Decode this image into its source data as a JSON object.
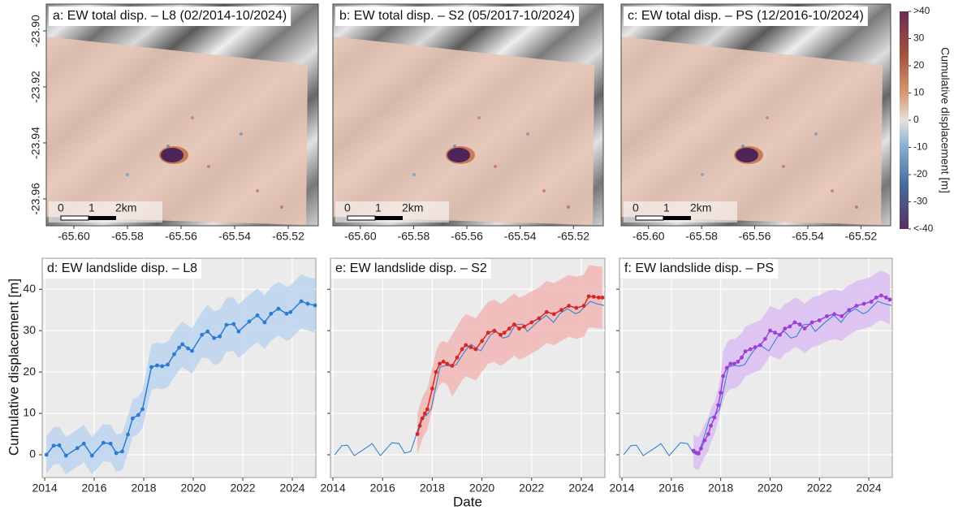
{
  "chart_data": [
    {
      "type": "map",
      "title": "a: EW total disp. – L8 (02/2014-10/2024)",
      "xlim": [
        -65.6103,
        -65.5088
      ],
      "ylim": [
        -23.9696,
        -23.8904
      ],
      "xticks": [
        {
          "value": -65.6,
          "label": "-65.60"
        },
        -65.58,
        -65.56,
        -65.54,
        -65.52
      ],
      "yticks": [
        {
          "value": -23.9,
          "label": "-23.90"
        },
        -23.92,
        -23.94,
        -23.96
      ],
      "scalebar_labels": [
        "0",
        "1",
        "2km"
      ]
    },
    {
      "type": "map",
      "title": "b: EW total disp. – S2 (05/2017-10/2024)",
      "xlim": [
        -65.6103,
        -65.5088
      ],
      "ylim": [
        -23.9696,
        -23.8904
      ],
      "xticks": [
        {
          "value": -65.6,
          "label": "-65.60"
        },
        -65.58,
        -65.56,
        -65.54,
        -65.52
      ],
      "scalebar_labels": [
        "0",
        "1",
        "2km"
      ]
    },
    {
      "type": "map",
      "title": "c: EW total disp. – PS (12/2016-10/2024)",
      "xlim": [
        -65.6103,
        -65.5088
      ],
      "ylim": [
        -23.9696,
        -23.8904
      ],
      "xticks": [
        {
          "value": -65.6,
          "label": "-65.60"
        },
        -65.58,
        -65.56,
        -65.54,
        -65.52
      ],
      "scalebar_labels": [
        "0",
        "1",
        "2km"
      ]
    },
    {
      "type": "line",
      "title": "d: EW landslide disp. – L8",
      "xlim": [
        2013.9,
        2024.95
      ],
      "ylim": [
        -5.5,
        47.5
      ],
      "xticks": [
        2014,
        2016,
        2018,
        2020,
        2022,
        2024
      ],
      "yticks": [
        0,
        10,
        20,
        30,
        40
      ],
      "ytick_labels": true,
      "grid": true,
      "series": [
        {
          "color": "#2b7bd0",
          "band_color": "#bcd5ef",
          "markers": true,
          "x": [
            2014.07,
            2014.36,
            2014.59,
            2014.86,
            2015.32,
            2015.58,
            2015.91,
            2016.37,
            2016.66,
            2016.89,
            2017.13,
            2017.36,
            2017.55,
            2017.78,
            2017.95,
            2018.31,
            2018.54,
            2018.74,
            2018.97,
            2019.23,
            2019.43,
            2019.56,
            2019.79,
            2019.95,
            2020.35,
            2020.58,
            2020.84,
            2021.07,
            2021.34,
            2021.63,
            2021.83,
            2022.26,
            2022.59,
            2022.88,
            2023.14,
            2023.44,
            2023.77,
            2023.93,
            2024.36,
            2024.62,
            2024.92
          ],
          "values": [
            0,
            2.2,
            2.3,
            -0.2,
            1.6,
            2.7,
            -0.2,
            2.9,
            2.7,
            0.4,
            0.8,
            4.9,
            8.8,
            9.6,
            11,
            21.2,
            21.6,
            21.4,
            21.8,
            24.3,
            25.9,
            26.7,
            25.7,
            25.1,
            29,
            29.8,
            28.2,
            28.6,
            31.4,
            31.6,
            29.8,
            32.2,
            33.7,
            32,
            34.1,
            35.3,
            34.1,
            34.5,
            37.1,
            36.5,
            36.1
          ],
          "errors": [
            4.5,
            4.5,
            4.5,
            4.5,
            4.5,
            4.5,
            4.5,
            4.5,
            4.5,
            4.5,
            4.5,
            4.5,
            4.5,
            4.5,
            4.5,
            5.5,
            5.5,
            5.5,
            5.5,
            5.5,
            5.5,
            5.5,
            5.5,
            5.5,
            5.5,
            6.5,
            6.5,
            6.5,
            6.5,
            6.5,
            6.5,
            6.5,
            6.5,
            6.5,
            6.5,
            6.5,
            6.5,
            6.5,
            6.5,
            6.5,
            6.5
          ]
        }
      ]
    },
    {
      "type": "line",
      "title": "e: EW landslide disp. – S2",
      "xlim": [
        2013.9,
        2024.95
      ],
      "ylim": [
        -5.5,
        47.5
      ],
      "xticks": [
        2014,
        2016,
        2018,
        2020,
        2022,
        2024
      ],
      "yticks": [
        0,
        10,
        20,
        30,
        40
      ],
      "ytick_labels": false,
      "grid": true,
      "series": [
        {
          "color": "#d62728",
          "band_color": "#f1b7b5",
          "markers": true,
          "x": [
            2017.4,
            2017.5,
            2017.6,
            2017.7,
            2017.8,
            2018.0,
            2018.15,
            2018.3,
            2018.45,
            2018.6,
            2018.8,
            2019.0,
            2019.2,
            2019.35,
            2019.55,
            2019.75,
            2020.0,
            2020.25,
            2020.5,
            2020.75,
            2020.9,
            2021.1,
            2021.3,
            2021.5,
            2021.7,
            2022.0,
            2022.3,
            2022.6,
            2022.9,
            2023.2,
            2023.5,
            2023.8,
            2024.1,
            2024.3,
            2024.5,
            2024.7,
            2024.85
          ],
          "values": [
            5,
            7,
            8.8,
            10,
            11,
            16,
            20,
            22,
            22.5,
            22,
            21.5,
            23.5,
            25.5,
            26.5,
            26,
            25.5,
            27.5,
            29.5,
            30,
            29,
            29.5,
            30.5,
            31.5,
            30.5,
            31,
            32,
            33,
            34.5,
            34,
            35,
            36,
            35.5,
            36,
            38.3,
            38.2,
            38,
            38
          ],
          "errors": [
            5,
            5,
            5,
            5,
            5,
            5,
            5,
            5,
            5,
            5,
            7.5,
            7.5,
            7.5,
            7.5,
            7.5,
            7.5,
            7.5,
            7.5,
            7.5,
            7.5,
            7.5,
            7.5,
            7.5,
            7.5,
            7.5,
            7.5,
            7.5,
            7.5,
            7.5,
            7.5,
            7.5,
            7.5,
            7.5,
            7.5,
            7.5,
            7.5,
            7.5
          ]
        },
        {
          "color": "#2b7bd0",
          "markers": false,
          "x": [
            2014.07,
            2014.36,
            2014.59,
            2014.86,
            2015.32,
            2015.58,
            2015.91,
            2016.37,
            2016.66,
            2016.89,
            2017.13,
            2017.36,
            2017.55,
            2017.78,
            2017.95,
            2018.31,
            2018.54,
            2018.74,
            2018.97,
            2019.23,
            2019.43,
            2019.56,
            2019.79,
            2019.95,
            2020.35,
            2020.58,
            2020.84,
            2021.07,
            2021.34,
            2021.63,
            2021.83,
            2022.26,
            2022.59,
            2022.88,
            2023.14,
            2023.44,
            2023.77,
            2023.93,
            2024.36,
            2024.62,
            2024.92
          ],
          "values": [
            0,
            2.2,
            2.3,
            -0.2,
            1.6,
            2.7,
            -0.2,
            2.9,
            2.7,
            0.4,
            0.8,
            4.9,
            8.8,
            9.6,
            11,
            21.2,
            21.6,
            21.4,
            21.8,
            24.3,
            25.9,
            26.7,
            25.7,
            25.1,
            29,
            29.8,
            28.2,
            28.6,
            31.4,
            31.6,
            29.8,
            32.2,
            33.7,
            32,
            34.1,
            35.3,
            34.1,
            34.5,
            37.1,
            36.5,
            36.1
          ]
        }
      ]
    },
    {
      "type": "line",
      "title": "f: EW landslide disp. – PS",
      "xlim": [
        2013.9,
        2024.95
      ],
      "ylim": [
        -5.5,
        47.5
      ],
      "xticks": [
        2014,
        2016,
        2018,
        2020,
        2022,
        2024
      ],
      "yticks": [
        0,
        10,
        20,
        30,
        40
      ],
      "ytick_labels": false,
      "grid": true,
      "series": [
        {
          "color": "#9b3fd6",
          "band_color": "#dcbdf1",
          "markers": true,
          "x": [
            2016.9,
            2017.0,
            2017.1,
            2017.2,
            2017.35,
            2017.5,
            2017.6,
            2017.75,
            2017.9,
            2018.0,
            2018.1,
            2018.25,
            2018.4,
            2018.55,
            2018.7,
            2018.85,
            2019.0,
            2019.2,
            2019.4,
            2019.6,
            2019.8,
            2020.0,
            2020.2,
            2020.4,
            2020.6,
            2020.8,
            2021.0,
            2021.2,
            2021.4,
            2021.7,
            2022.0,
            2022.3,
            2022.6,
            2022.9,
            2023.2,
            2023.5,
            2023.8,
            2024.1,
            2024.3,
            2024.5,
            2024.7,
            2024.85
          ],
          "values": [
            1,
            0.5,
            0.3,
            1.5,
            3.5,
            5,
            7,
            9,
            12,
            15,
            19,
            21,
            22,
            22,
            22.5,
            23.5,
            25,
            25.5,
            26,
            26.5,
            28,
            30,
            29.5,
            29,
            30.5,
            31,
            32,
            31.5,
            30.5,
            32,
            32.5,
            33.5,
            34,
            33.5,
            35,
            36,
            36.5,
            37,
            38,
            38.5,
            38,
            37.5
          ],
          "errors": [
            4,
            4,
            4,
            4,
            4,
            4,
            4,
            4,
            4,
            4,
            6,
            6,
            6,
            6,
            6,
            6,
            6,
            6,
            6,
            6,
            6,
            6,
            6,
            6,
            6,
            6,
            6,
            6,
            6,
            6,
            6,
            6,
            6,
            6,
            6,
            6,
            6,
            6,
            6,
            6,
            6,
            6
          ]
        },
        {
          "color": "#2b7bd0",
          "markers": false,
          "x": [
            2014.07,
            2014.36,
            2014.59,
            2014.86,
            2015.32,
            2015.58,
            2015.91,
            2016.37,
            2016.66,
            2016.89,
            2017.13,
            2017.36,
            2017.55,
            2017.78,
            2017.95,
            2018.31,
            2018.54,
            2018.74,
            2018.97,
            2019.23,
            2019.43,
            2019.56,
            2019.79,
            2019.95,
            2020.35,
            2020.58,
            2020.84,
            2021.07,
            2021.34,
            2021.63,
            2021.83,
            2022.26,
            2022.59,
            2022.88,
            2023.14,
            2023.44,
            2023.77,
            2023.93,
            2024.36,
            2024.62,
            2024.92
          ],
          "values": [
            0,
            2.2,
            2.3,
            -0.2,
            1.6,
            2.7,
            -0.2,
            2.9,
            2.7,
            0.4,
            0.8,
            4.9,
            8.8,
            9.6,
            11,
            21.2,
            21.6,
            21.4,
            21.8,
            24.3,
            25.9,
            26.7,
            25.7,
            25.1,
            29,
            29.8,
            28.2,
            28.6,
            31.4,
            31.6,
            29.8,
            32.2,
            33.7,
            32,
            34.1,
            35.3,
            34.1,
            34.5,
            37.1,
            36.5,
            36.1
          ]
        }
      ]
    }
  ],
  "colorbar": {
    "label": "Cumulative displacement [m]",
    "lim": [
      -40,
      40
    ],
    "ticks": [
      {
        "value": 40,
        "label": ">40"
      },
      30,
      20,
      10,
      0,
      -10,
      -20,
      -30,
      {
        "value": -40,
        "label": "<-40"
      }
    ]
  },
  "labels": {
    "y": "Cumulative displacement [m]",
    "x": "Date"
  }
}
